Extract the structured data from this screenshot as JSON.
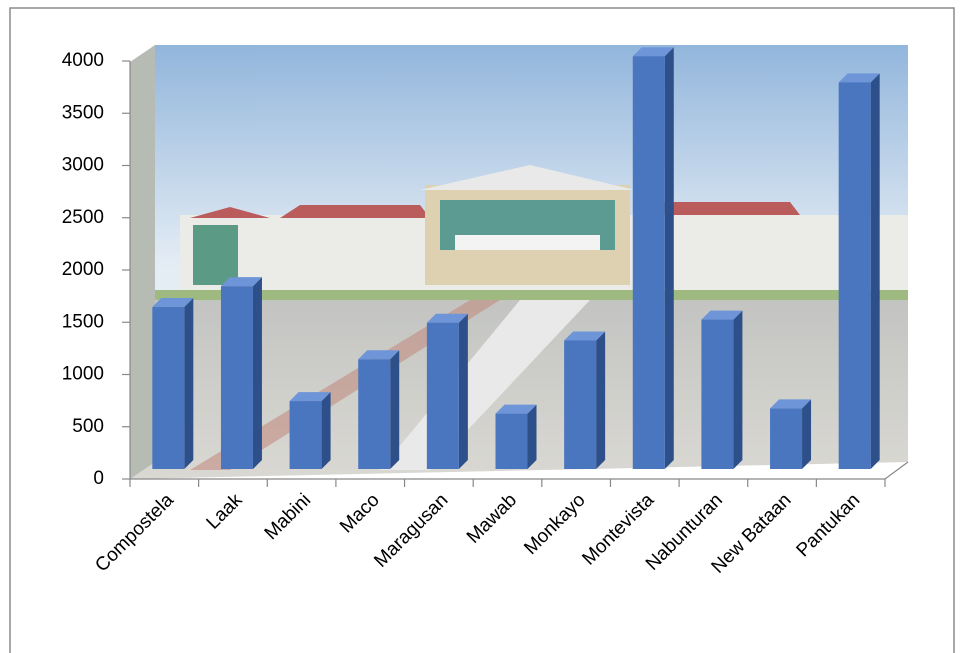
{
  "chart_data": {
    "type": "bar",
    "categories": [
      "Compostela",
      "Laak",
      "Mabini",
      "Maco",
      "Maragusan",
      "Mawab",
      "Monkayo",
      "Montevista",
      "Nabunturan",
      "New Bataan",
      "Pantukan"
    ],
    "values": [
      1550,
      1750,
      650,
      1050,
      1400,
      530,
      1230,
      3950,
      1430,
      580,
      3700
    ],
    "color": "#4a76c0",
    "ylim": [
      0,
      4000
    ],
    "yticks": [
      0,
      500,
      1000,
      1500,
      2000,
      2500,
      3000,
      3500,
      4000
    ]
  }
}
